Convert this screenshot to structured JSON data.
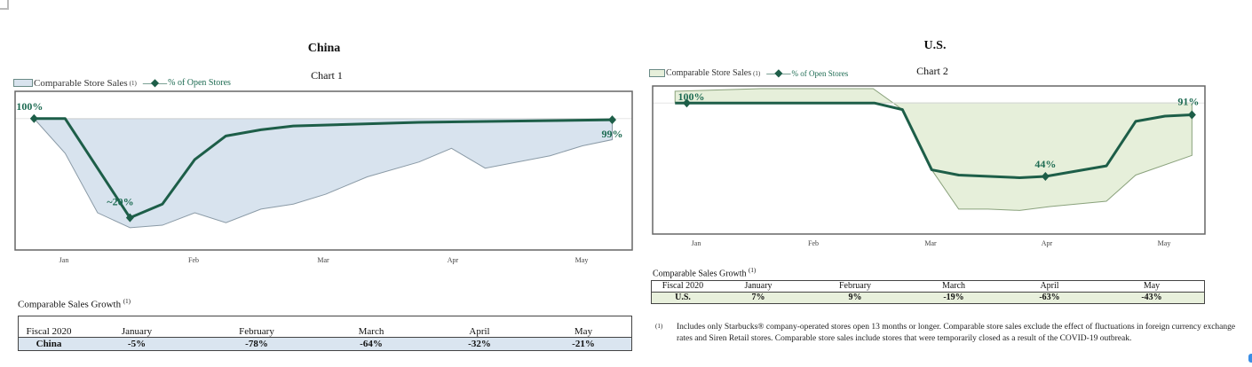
{
  "colors": {
    "line": "#1d5e48",
    "china_fill": "#d8e3ee",
    "us_fill": "#e6efda",
    "china_row": "#dae5f0",
    "us_row": "#e8f0dc"
  },
  "months": [
    "Jan",
    "Feb",
    "Mar",
    "Apr",
    "May"
  ],
  "chart_data": [
    {
      "type": "area",
      "title": "China",
      "subtitle": "Chart 1",
      "legend": {
        "sales": "Comparable Store Sales",
        "sales_note": "(1)",
        "open": "% of Open Stores"
      },
      "x_ticks": [
        "Jan",
        "Feb",
        "Mar",
        "Apr",
        "May"
      ],
      "ylim": [
        -6,
        122
      ],
      "series": [
        {
          "name": "% of Open Stores",
          "type": "line",
          "points": [
            [
              -0.21,
              100
            ],
            [
              0.03,
              100
            ],
            [
              0.53,
              20
            ],
            [
              0.78,
              31
            ],
            [
              1.03,
              67
            ],
            [
              1.27,
              86
            ],
            [
              1.54,
              91
            ],
            [
              1.79,
              94
            ],
            [
              2.76,
              97
            ],
            [
              4.25,
              99
            ]
          ],
          "labels": [
            {
              "x": -0.21,
              "y": 100,
              "text": "100%"
            },
            {
              "x": 0.53,
              "y": 20,
              "text": "~20%"
            },
            {
              "x": 4.25,
              "y": 99,
              "text": "99%"
            }
          ]
        },
        {
          "name": "Comparable Store Sales",
          "type": "area",
          "baseline": 100,
          "points": [
            [
              -0.21,
              100
            ],
            [
              0.03,
              72
            ],
            [
              0.28,
              24
            ],
            [
              0.53,
              12
            ],
            [
              0.78,
              14
            ],
            [
              1.03,
              24
            ],
            [
              1.27,
              16
            ],
            [
              1.54,
              27
            ],
            [
              1.79,
              31
            ],
            [
              2.04,
              39
            ],
            [
              2.36,
              53
            ],
            [
              2.76,
              65
            ],
            [
              3.01,
              76
            ],
            [
              3.27,
              60
            ],
            [
              3.77,
              70
            ],
            [
              4.02,
              78
            ],
            [
              4.25,
              83
            ]
          ]
        }
      ]
    },
    {
      "type": "area",
      "title": "U.S.",
      "subtitle": "Chart 2",
      "legend": {
        "sales": "Comparable Store Sales",
        "sales_note": "(1)",
        "open": "% of Open Stores"
      },
      "x_ticks": [
        "Jan",
        "Feb",
        "Mar",
        "Apr",
        "May"
      ],
      "ylim": [
        0,
        113
      ],
      "series": [
        {
          "name": "% of Open Stores",
          "type": "line",
          "points": [
            [
              -0.18,
              100
            ],
            [
              -0.08,
              100
            ],
            [
              1.52,
              100
            ],
            [
              1.76,
              95
            ],
            [
              2.01,
              49
            ],
            [
              2.24,
              45
            ],
            [
              2.76,
              43
            ],
            [
              2.98,
              44
            ],
            [
              3.5,
              52
            ],
            [
              3.75,
              86
            ],
            [
              4.0,
              90
            ],
            [
              4.23,
              91
            ]
          ],
          "labels": [
            {
              "x": -0.08,
              "y": 100,
              "text": "100%"
            },
            {
              "x": 2.98,
              "y": 44,
              "text": "44%"
            },
            {
              "x": 4.23,
              "y": 91,
              "text": "91%"
            }
          ]
        },
        {
          "name": "Comparable Store Sales",
          "type": "area",
          "baseline": 100,
          "points": [
            [
              -0.18,
              109
            ],
            [
              0.55,
              111
            ],
            [
              1.51,
              111
            ],
            [
              1.76,
              95
            ],
            [
              2.01,
              49
            ],
            [
              2.24,
              19
            ],
            [
              2.49,
              19
            ],
            [
              2.76,
              18
            ],
            [
              3.02,
              21
            ],
            [
              3.5,
              25
            ],
            [
              3.75,
              45
            ],
            [
              4.23,
              60
            ]
          ]
        }
      ]
    }
  ],
  "china_table": {
    "caption": "Comparable Sales Growth",
    "note": "(1)",
    "headers": [
      "Fiscal 2020",
      "January",
      "February",
      "March",
      "April",
      "May"
    ],
    "row": [
      "China",
      "-5%",
      "-78%",
      "-64%",
      "-32%",
      "-21%"
    ]
  },
  "us_table": {
    "caption": "Comparable Sales Growth",
    "note": "(1)",
    "headers": [
      "Fiscal 2020",
      "January",
      "February",
      "March",
      "April",
      "May"
    ],
    "row": [
      "U.S.",
      "7%",
      "9%",
      "-19%",
      "-63%",
      "-43%"
    ]
  },
  "footnote": {
    "marker": "(1)",
    "text": "Includes only Starbucks® company-operated stores open 13 months or longer. Comparable store sales exclude the effect of fluctuations in foreign currency exchange rates and Siren Retail stores.  Comparable store sales include stores that were temporarily closed as a result of the COVID-19 outbreak."
  }
}
